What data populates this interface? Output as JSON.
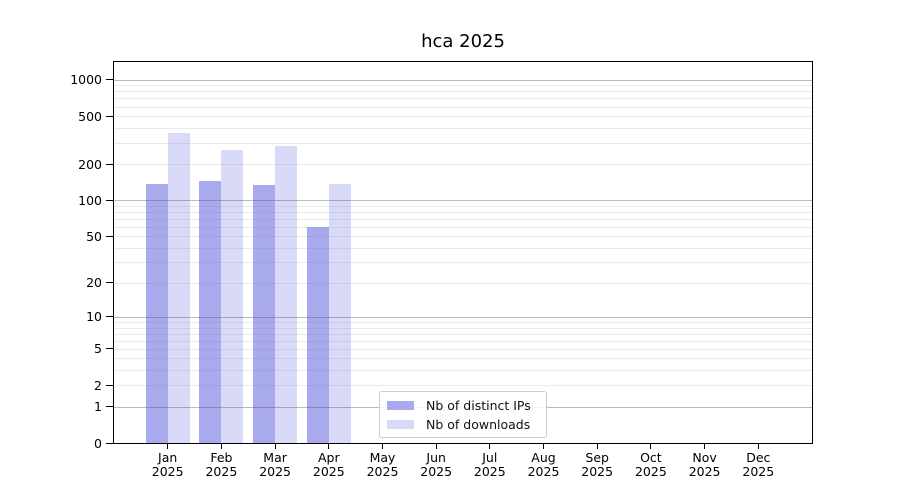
{
  "figure": {
    "background": "#ffffff"
  },
  "chart_data": {
    "type": "bar",
    "title": "hca 2025",
    "categories": [
      "Jan",
      "Feb",
      "Mar",
      "Apr",
      "May",
      "Jun",
      "Jul",
      "Aug",
      "Sep",
      "Oct",
      "Nov",
      "Dec"
    ],
    "category_year": "2025",
    "series": [
      {
        "name": "Nb of distinct IPs",
        "color": "#a9a9ee",
        "values": [
          137,
          145,
          134,
          60,
          0,
          0,
          0,
          0,
          0,
          0,
          0,
          0
        ]
      },
      {
        "name": "Nb of downloads",
        "color": "#d9d9f8",
        "values": [
          360,
          262,
          284,
          137,
          0,
          0,
          0,
          0,
          0,
          0,
          0,
          0
        ]
      }
    ],
    "yscale": "log1p",
    "ylim": [
      0,
      1400
    ],
    "y_ticks": [
      1000,
      500,
      200,
      100,
      50,
      20,
      10,
      5,
      2,
      1,
      0
    ],
    "major_gridlines": [
      1,
      10,
      100,
      1000
    ],
    "grid": true,
    "legend_position": "lower center"
  }
}
